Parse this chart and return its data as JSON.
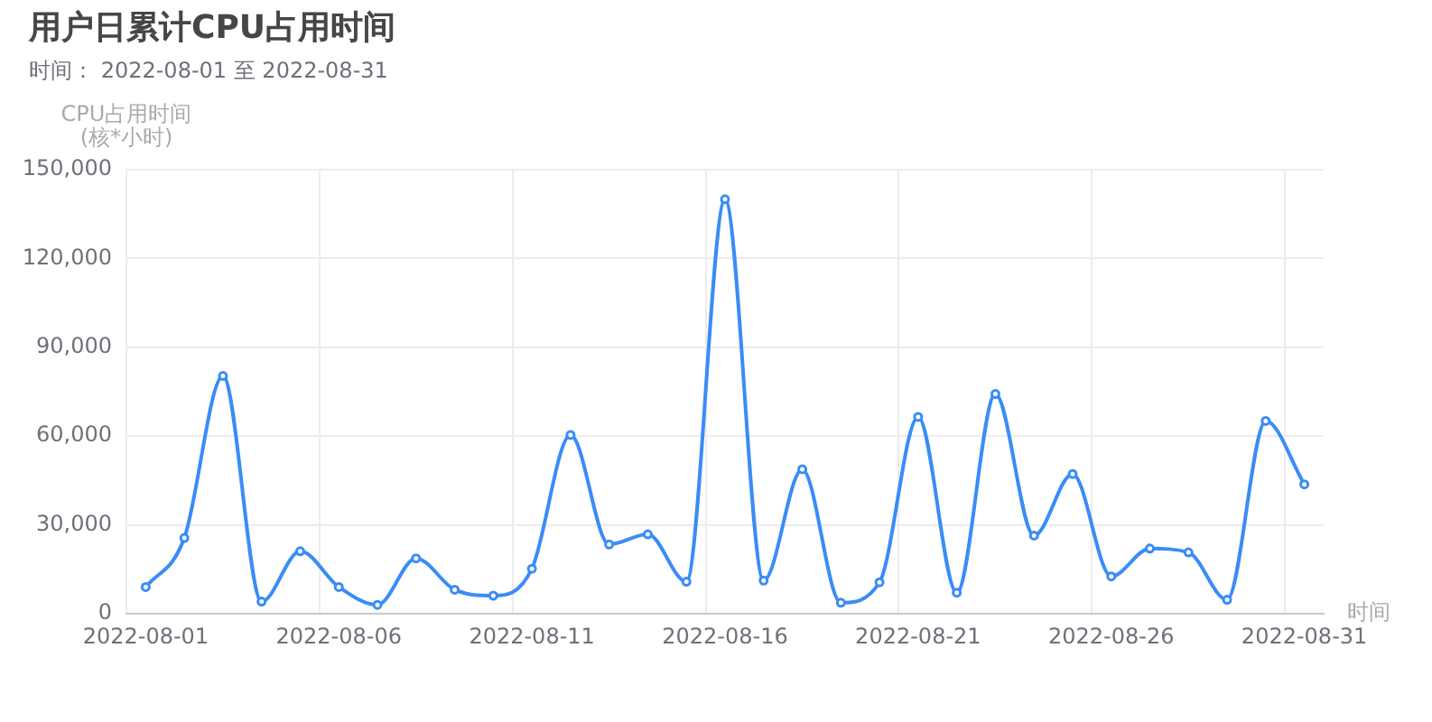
{
  "chart_data": {
    "type": "line",
    "title": "用户日累计CPU占用时间",
    "subtitle": "时间： 2022-08-01 至 2022-08-31",
    "xlabel": "时间",
    "ylabel": "CPU占用时间\n(核*小时)",
    "categories": [
      "2022-08-01",
      null,
      null,
      null,
      null,
      "2022-08-06",
      null,
      null,
      null,
      null,
      "2022-08-11",
      null,
      null,
      null,
      null,
      "2022-08-16",
      null,
      null,
      null,
      null,
      "2022-08-21",
      null,
      null,
      null,
      null,
      "2022-08-26",
      null,
      null,
      null,
      null,
      "2022-08-31"
    ],
    "series": [
      {
        "color": "#3a8cf7",
        "values": [
          9000,
          25600,
          80300,
          4100,
          21100,
          9000,
          3000,
          18700,
          8100,
          6100,
          15200,
          60400,
          23400,
          26800,
          10800,
          140000,
          11200,
          48800,
          3700,
          10600,
          66500,
          7100,
          74200,
          26400,
          47200,
          12600,
          22000,
          20700,
          4700,
          65100,
          43700
        ]
      }
    ],
    "ylim": [
      0,
      150000
    ],
    "yticks": [
      0,
      {
        "value": 30000,
        "label": "30,000"
      },
      {
        "value": 60000,
        "label": "60,000"
      },
      {
        "value": 90000,
        "label": "90,000"
      },
      {
        "value": 120000,
        "label": "120,000"
      },
      {
        "value": 150000,
        "label": "150,000"
      }
    ],
    "grid": true,
    "legend": false,
    "marker": "circle",
    "line_style": "solid"
  }
}
